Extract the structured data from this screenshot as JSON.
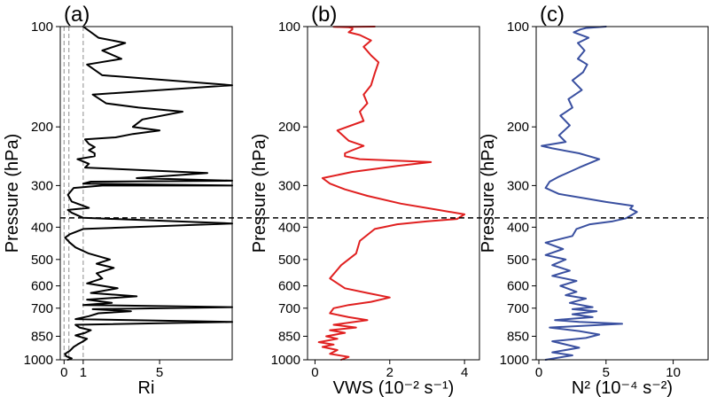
{
  "chart_data": [
    {
      "type": "line",
      "panel_label": "(a)",
      "xlabel": "Ri",
      "ylabel": "Pressure (hPa)",
      "xlim": [
        -0.2,
        8.8
      ],
      "ylim": [
        1000,
        100
      ],
      "yscale": "log",
      "xticks": [
        0,
        1,
        5
      ],
      "xtick_labels": [
        "0",
        "1",
        "5"
      ],
      "yticks": [
        100,
        200,
        300,
        400,
        500,
        600,
        700,
        850,
        1000
      ],
      "ytick_labels": [
        "100",
        "200",
        "300",
        "400",
        "500",
        "600",
        "700",
        "850",
        "1000"
      ],
      "line_color": "#000000",
      "reference_vlines": [
        0,
        0.25,
        1
      ],
      "reference_vline_color": "#a0a0a0",
      "hline": 375,
      "grid": false,
      "series": [
        {
          "x": [
            0.2,
            0.4,
            0.1,
            0.05,
            0.3,
            0.5,
            0.7,
            1.0,
            1.2,
            0.9,
            0.6,
            1.1,
            1.4,
            0.8,
            0.6,
            8.8,
            0.6,
            1.3,
            1.8,
            3.5,
            1.5,
            8.8,
            1.0,
            2.5,
            1.2,
            3.8,
            1.4,
            2.8,
            1.2,
            2.0,
            1.7,
            2.6,
            1.7,
            2.4,
            1.3,
            0.6,
            0.3,
            0.05,
            0.3,
            1.0,
            8.8,
            1.0,
            0.4,
            0.2,
            1.3,
            0.4,
            0.2,
            0.5,
            2.0,
            8.8,
            1.0,
            1.4,
            8.8,
            3.8,
            7.5,
            1.1,
            1.3,
            0.7,
            1.6,
            1.6,
            1.3,
            1.6,
            1.3,
            1.1,
            2.7,
            3.6,
            5.0,
            3.6,
            4.1,
            6.2,
            3.9,
            2.2,
            1.5,
            8.8,
            2.0,
            1.2,
            3.0,
            2.0,
            3.2,
            1.8,
            1.0
          ],
          "y": [
            1000,
            990,
            975,
            960,
            940,
            915,
            900,
            880,
            865,
            855,
            845,
            830,
            815,
            800,
            785,
            770,
            755,
            740,
            725,
            715,
            705,
            695,
            685,
            675,
            660,
            645,
            630,
            610,
            590,
            570,
            550,
            530,
            515,
            500,
            480,
            460,
            445,
            430,
            420,
            405,
            390,
            375,
            362,
            355,
            350,
            335,
            320,
            305,
            300,
            300,
            296,
            292,
            290,
            285,
            275,
            265,
            258,
            250,
            245,
            240,
            235,
            230,
            225,
            218,
            215,
            210,
            205,
            200,
            190,
            180,
            175,
            170,
            160,
            150,
            140,
            130,
            125,
            118,
            112,
            108,
            100
          ]
        }
      ]
    },
    {
      "type": "line",
      "panel_label": "(b)",
      "xlabel": "VWS (10⁻² s⁻¹)",
      "ylabel": "Pressure (hPa)",
      "xlim": [
        -0.2,
        4.4
      ],
      "ylim": [
        1000,
        100
      ],
      "yscale": "log",
      "xticks": [
        0,
        2,
        4
      ],
      "xtick_labels": [
        "0",
        "2",
        "4"
      ],
      "yticks": [
        100,
        200,
        300,
        400,
        500,
        600,
        700,
        850,
        1000
      ],
      "ytick_labels": [
        "100",
        "200",
        "300",
        "400",
        "500",
        "600",
        "700",
        "850",
        "1000"
      ],
      "line_color": "#e02020",
      "hline": 375,
      "grid": false,
      "series": [
        {
          "x": [
            0.7,
            0.9,
            0.4,
            0.6,
            0.2,
            0.5,
            0.1,
            0.6,
            0.3,
            0.8,
            0.4,
            1.1,
            0.5,
            1.4,
            0.9,
            0.4,
            0.5,
            0.9,
            1.5,
            2.0,
            1.4,
            0.8,
            0.4,
            0.7,
            1.1,
            1.2,
            1.6,
            2.2,
            3.0,
            3.8,
            4.0,
            3.3,
            2.3,
            1.4,
            0.8,
            0.4,
            0.2,
            1.0,
            2.2,
            3.1,
            1.2,
            0.8,
            0.8,
            1.0,
            1.3,
            0.9,
            0.6,
            1.3,
            1.2,
            1.4,
            1.3,
            1.5,
            1.6,
            1.7,
            1.5,
            1.3,
            1.5,
            1.2,
            0.9,
            1.0,
            1.0,
            0.9,
            0.5,
            1.0,
            1.6
          ],
          "y": [
            1000,
            980,
            960,
            935,
            915,
            900,
            885,
            865,
            850,
            830,
            815,
            800,
            785,
            760,
            745,
            725,
            700,
            685,
            670,
            650,
            630,
            610,
            570,
            520,
            480,
            440,
            405,
            392,
            384,
            378,
            366,
            355,
            340,
            322,
            308,
            296,
            285,
            273,
            262,
            255,
            250,
            245,
            240,
            235,
            228,
            220,
            205,
            192,
            180,
            170,
            160,
            150,
            138,
            128,
            122,
            115,
            110,
            106,
            104,
            102,
            101,
            100.5,
            100.2,
            100.1,
            100
          ]
        }
      ]
    },
    {
      "type": "line",
      "panel_label": "(c)",
      "xlabel": "N² (10⁻⁴ s⁻²)",
      "ylabel": "Pressure (hPa)",
      "xlim": [
        -0.2,
        12.6
      ],
      "ylim": [
        1000,
        100
      ],
      "yscale": "log",
      "xticks": [
        0,
        5,
        10
      ],
      "xtick_labels": [
        "0",
        "5",
        "10"
      ],
      "yticks": [
        100,
        200,
        300,
        400,
        500,
        600,
        700,
        850,
        1000
      ],
      "ytick_labels": [
        "100",
        "200",
        "300",
        "400",
        "500",
        "600",
        "700",
        "850",
        "1000"
      ],
      "line_color": "#3a50a0",
      "hline": 375,
      "grid": false,
      "series": [
        {
          "x": [
            0.5,
            2.5,
            1.0,
            3.0,
            1.0,
            3.5,
            4.5,
            3.0,
            0.8,
            6.2,
            3.0,
            1.2,
            4.0,
            2.5,
            4.3,
            2.5,
            4.0,
            2.3,
            3.5,
            2.0,
            2.8,
            1.6,
            2.8,
            1.0,
            2.3,
            1.0,
            2.0,
            0.5,
            1.8,
            0.5,
            2.5,
            2.8,
            3.8,
            5.5,
            6.5,
            7.3,
            6.8,
            7.0,
            5.0,
            3.5,
            1.5,
            0.5,
            0.8,
            1.5,
            3.0,
            4.5,
            3.0,
            1.0,
            0.2,
            2.0,
            1.5,
            2.3,
            1.6,
            2.5,
            2.2,
            3.2,
            2.5,
            3.3,
            3.6,
            2.9,
            3.4,
            2.9,
            3.7,
            2.6,
            3.1,
            3.5,
            5.0
          ],
          "y": [
            1000,
            970,
            950,
            920,
            880,
            860,
            840,
            820,
            800,
            780,
            770,
            760,
            745,
            730,
            715,
            705,
            695,
            675,
            655,
            640,
            625,
            600,
            580,
            560,
            540,
            520,
            500,
            485,
            465,
            445,
            425,
            405,
            392,
            384,
            376,
            360,
            352,
            345,
            336,
            328,
            318,
            305,
            292,
            282,
            265,
            250,
            240,
            232,
            228,
            222,
            212,
            198,
            185,
            175,
            165,
            155,
            145,
            137,
            130,
            125,
            118,
            112,
            108,
            104,
            102,
            101,
            100
          ]
        }
      ]
    }
  ]
}
